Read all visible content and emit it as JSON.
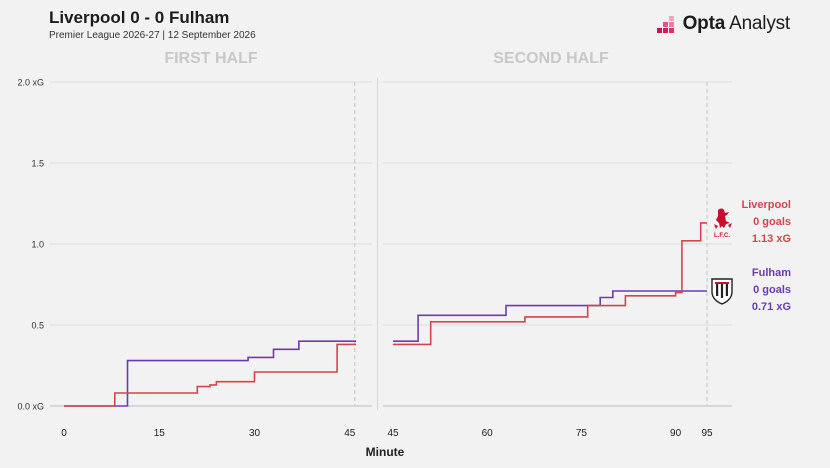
{
  "header": {
    "title": "Liverpool 0 - 0 Fulham",
    "subtitle": "Premier League 2026-27 | 12 September 2026",
    "brand": {
      "bold": "Opta",
      "regular": " Analyst"
    }
  },
  "colors": {
    "liverpool": "#d2454c",
    "fulham": "#6b3bb0",
    "background": "#f2f2f2",
    "grid": "#dcdcdc",
    "half_label": "#c8c8c8",
    "text": "#1c1c1c"
  },
  "teams": {
    "liverpool": {
      "name": "Liverpool",
      "goals": "0 goals",
      "xg": "1.13 xG",
      "crest_icon": "liverpool-crest-icon"
    },
    "fulham": {
      "name": "Fulham",
      "goals": "0 goals",
      "xg": "0.71 xG",
      "crest_icon": "fulham-crest-icon"
    }
  },
  "chart_data": {
    "type": "line",
    "subtype": "step",
    "title": "Liverpool 0 - 0 Fulham",
    "xlabel": "Minute",
    "ylabel": "",
    "ylim": [
      0,
      2.0
    ],
    "yticks": [
      "0.0 xG",
      "0.5",
      "1.0",
      "1.5",
      "2.0 xG"
    ],
    "grid": true,
    "panels": [
      {
        "label": "FIRST HALF",
        "xlim": [
          0,
          45
        ],
        "xticks": [
          "0",
          "15",
          "30",
          "45"
        ],
        "series": [
          {
            "name": "Fulham",
            "color": "#6b3bb0",
            "points": [
              [
                0,
                0.0
              ],
              [
                10,
                0.0
              ],
              [
                10,
                0.28
              ],
              [
                29,
                0.28
              ],
              [
                29,
                0.3
              ],
              [
                33,
                0.3
              ],
              [
                33,
                0.35
              ],
              [
                37,
                0.35
              ],
              [
                37,
                0.4
              ],
              [
                46,
                0.4
              ]
            ]
          },
          {
            "name": "Liverpool",
            "color": "#d2454c",
            "points": [
              [
                0,
                0.0
              ],
              [
                8,
                0.0
              ],
              [
                8,
                0.08
              ],
              [
                21,
                0.08
              ],
              [
                21,
                0.12
              ],
              [
                23,
                0.12
              ],
              [
                23,
                0.13
              ],
              [
                24,
                0.13
              ],
              [
                24,
                0.15
              ],
              [
                30,
                0.15
              ],
              [
                30,
                0.21
              ],
              [
                43,
                0.21
              ],
              [
                43,
                0.38
              ],
              [
                46,
                0.38
              ]
            ]
          }
        ]
      },
      {
        "label": "SECOND HALF",
        "xlim": [
          45,
          97
        ],
        "xticks": [
          "45",
          "60",
          "75",
          "90",
          "95"
        ],
        "series": [
          {
            "name": "Fulham",
            "color": "#6b3bb0",
            "points": [
              [
                45,
                0.4
              ],
              [
                49,
                0.4
              ],
              [
                49,
                0.56
              ],
              [
                63,
                0.56
              ],
              [
                63,
                0.62
              ],
              [
                78,
                0.62
              ],
              [
                78,
                0.67
              ],
              [
                80,
                0.67
              ],
              [
                80,
                0.71
              ],
              [
                95,
                0.71
              ]
            ]
          },
          {
            "name": "Liverpool",
            "color": "#d2454c",
            "points": [
              [
                45,
                0.38
              ],
              [
                51,
                0.38
              ],
              [
                51,
                0.52
              ],
              [
                66,
                0.52
              ],
              [
                66,
                0.55
              ],
              [
                76,
                0.55
              ],
              [
                76,
                0.62
              ],
              [
                82,
                0.62
              ],
              [
                82,
                0.68
              ],
              [
                90,
                0.68
              ],
              [
                90,
                0.7
              ],
              [
                91,
                0.7
              ],
              [
                91,
                1.02
              ],
              [
                94,
                1.02
              ],
              [
                94,
                1.13
              ],
              [
                95,
                1.13
              ]
            ]
          }
        ]
      }
    ],
    "final_minute_markers": [
      45,
      95
    ]
  }
}
